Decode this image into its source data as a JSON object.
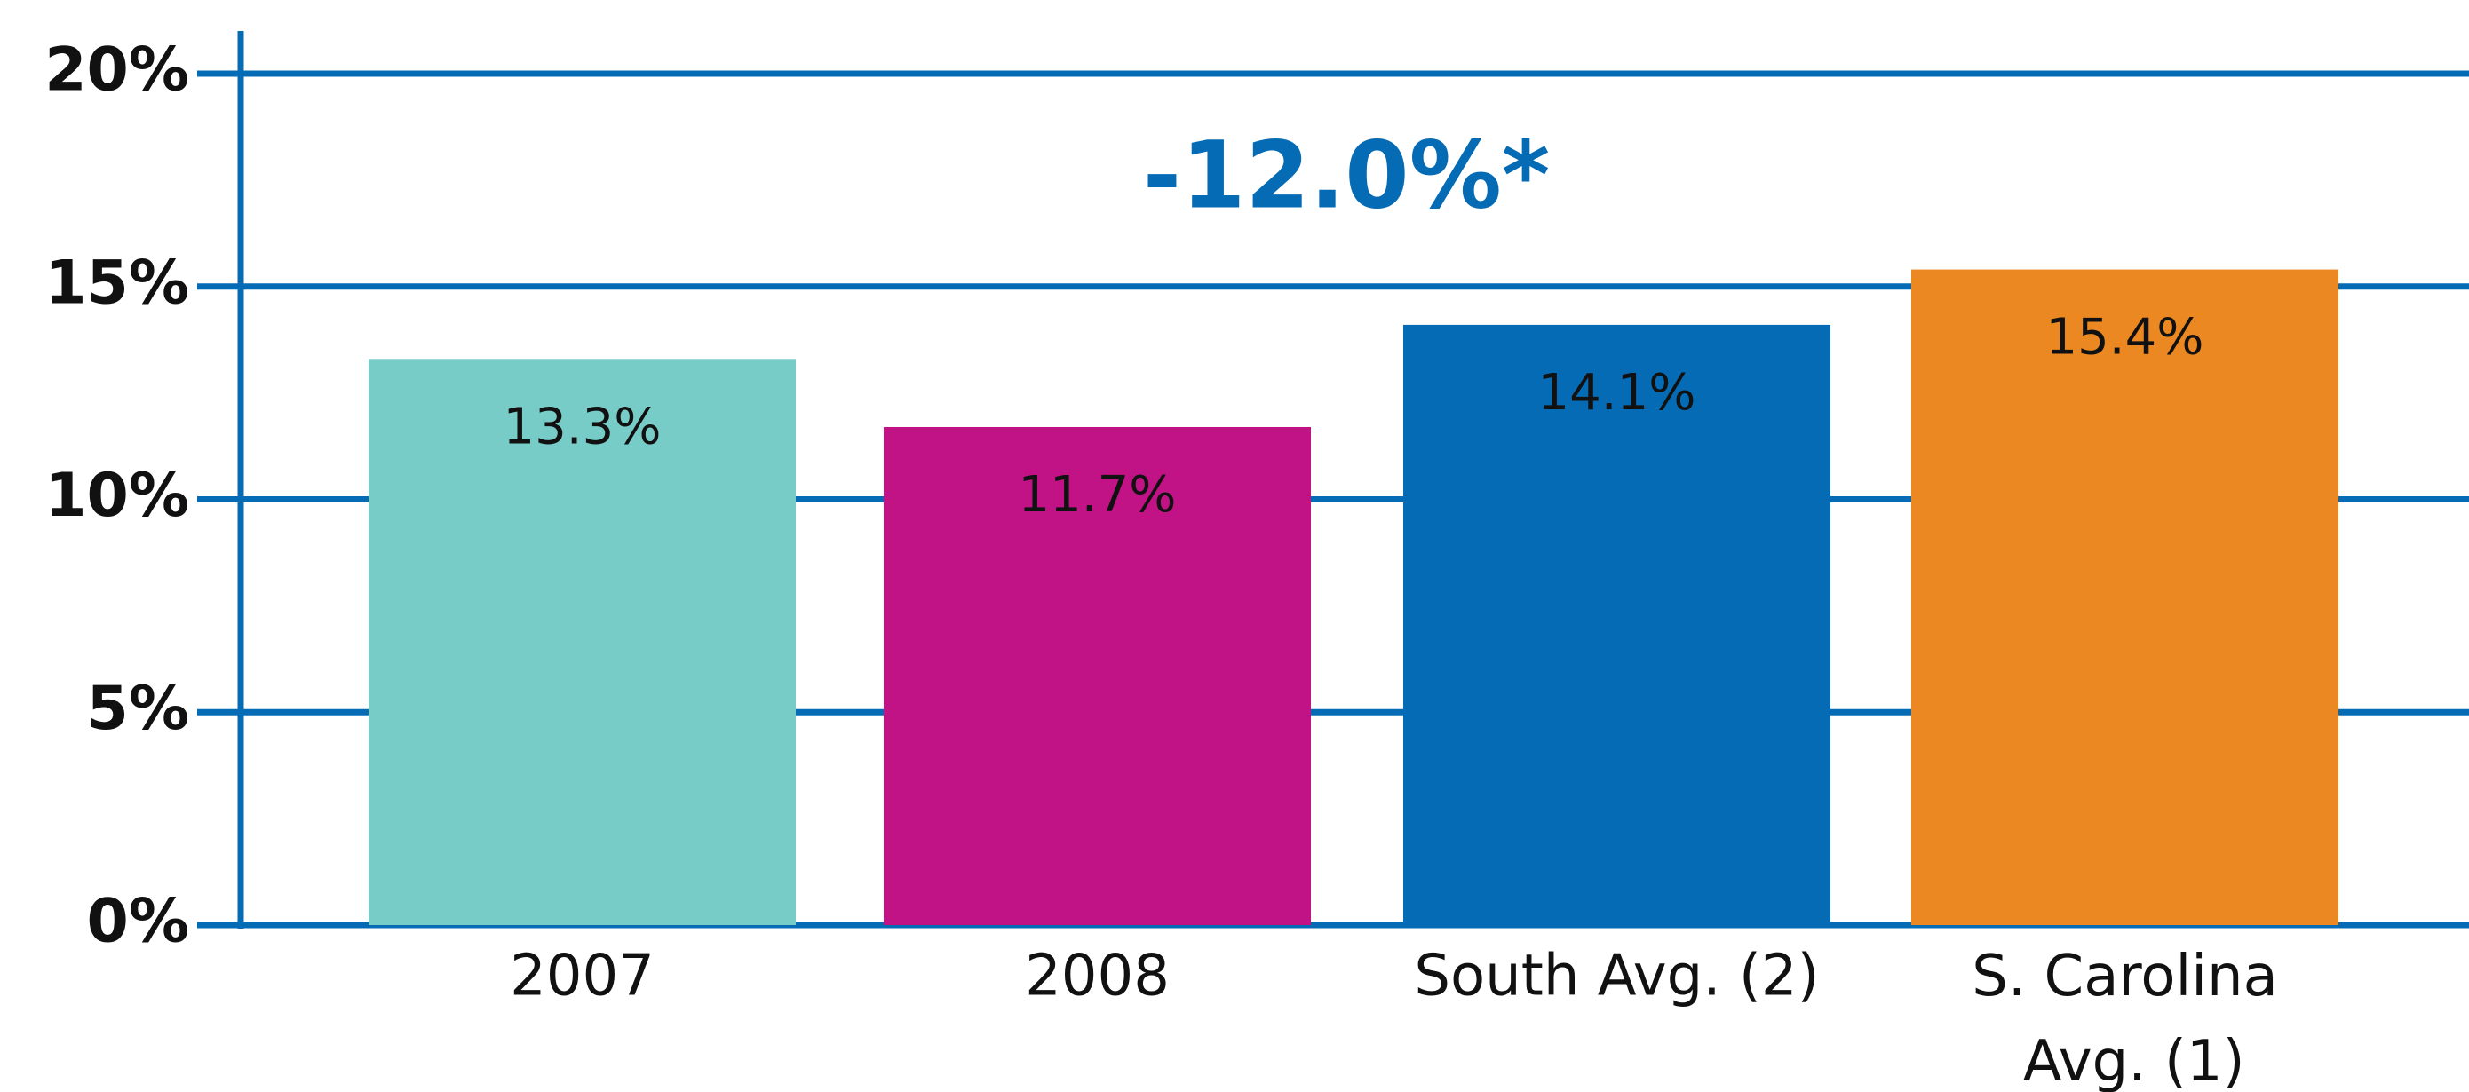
{
  "chart_data": {
    "type": "bar",
    "annotation": "-12.0%*",
    "categories": [
      "2007",
      "2008",
      "South Avg. (2)",
      "S. Carolina Avg. (1)"
    ],
    "values": [
      13.3,
      11.7,
      14.1,
      15.4
    ],
    "value_labels": [
      "13.3%",
      "11.7%",
      "14.1%",
      "15.4%"
    ],
    "colors": [
      "#77ccc8",
      "#c21386",
      "#066bb5",
      "#ec8821"
    ],
    "ylim": [
      0,
      20
    ],
    "yticks": [
      {
        "value": 0,
        "label": "0%"
      },
      {
        "value": 5,
        "label": "5%"
      },
      {
        "value": 10,
        "label": "10%"
      },
      {
        "value": 15,
        "label": "15%"
      },
      {
        "value": 20,
        "label": "20%"
      }
    ],
    "grid": true
  }
}
